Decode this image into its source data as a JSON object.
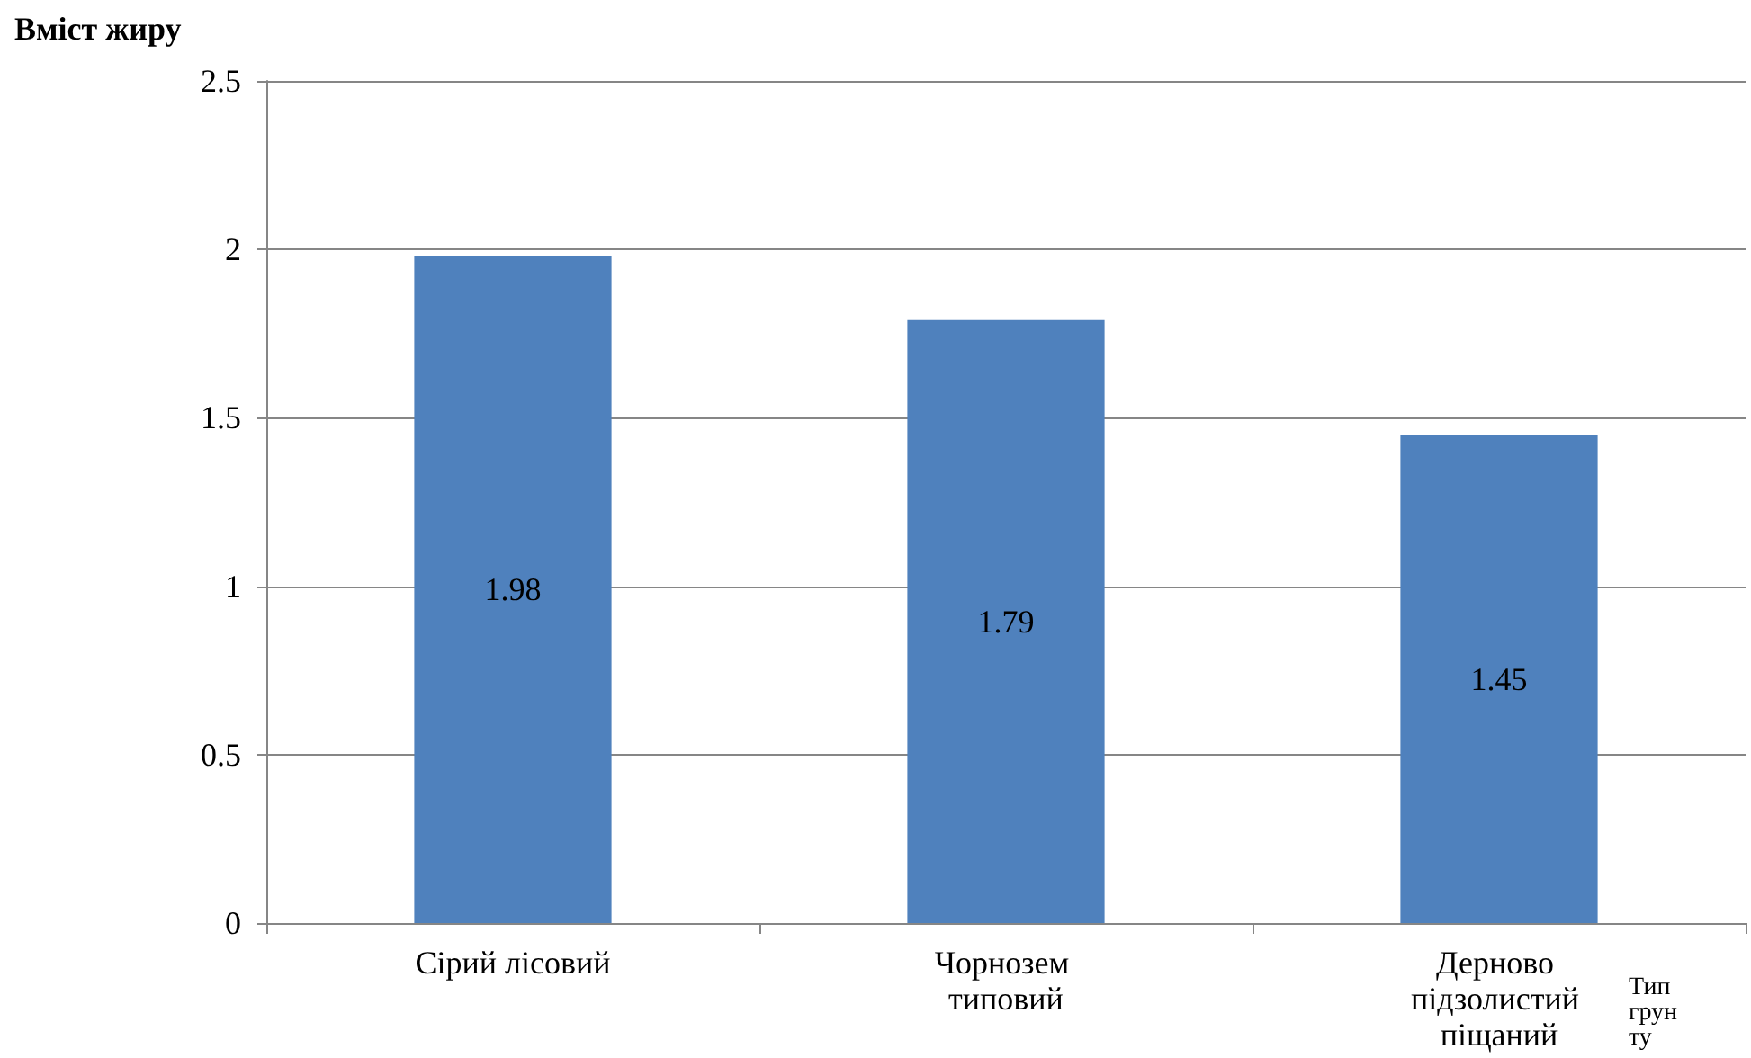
{
  "chart_data": {
    "type": "bar",
    "xlabel": "Тип грунту",
    "ylabel": "Вміст жиру",
    "categories": [
      "Сірий лісовий",
      "Чорнозем типовий",
      "Дерново підзолистий піщаний"
    ],
    "values": [
      1.98,
      1.79,
      1.45
    ],
    "color": "#4f81bd",
    "data_labels": true,
    "ylim": [
      0,
      2.5
    ],
    "yticks": [
      0,
      0.5,
      1,
      1.5,
      2,
      2.5
    ],
    "grid": "y"
  }
}
